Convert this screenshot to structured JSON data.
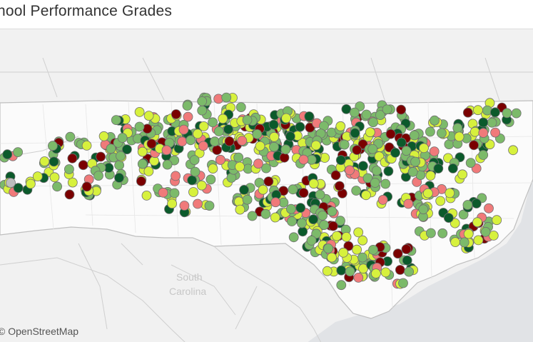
{
  "title": "hool Performance Grades",
  "attribution": "© OpenStreetMap",
  "map_labels": {
    "state_south_line1": "South",
    "state_south_line2": "Carolina"
  },
  "legend_colors": {
    "A": "#0b5a2b",
    "B": "#7cba6a",
    "C": "#d7f13d",
    "D": "#f07a7a",
    "F": "#7a0000",
    "unknown": "#bdbdbd"
  }
}
